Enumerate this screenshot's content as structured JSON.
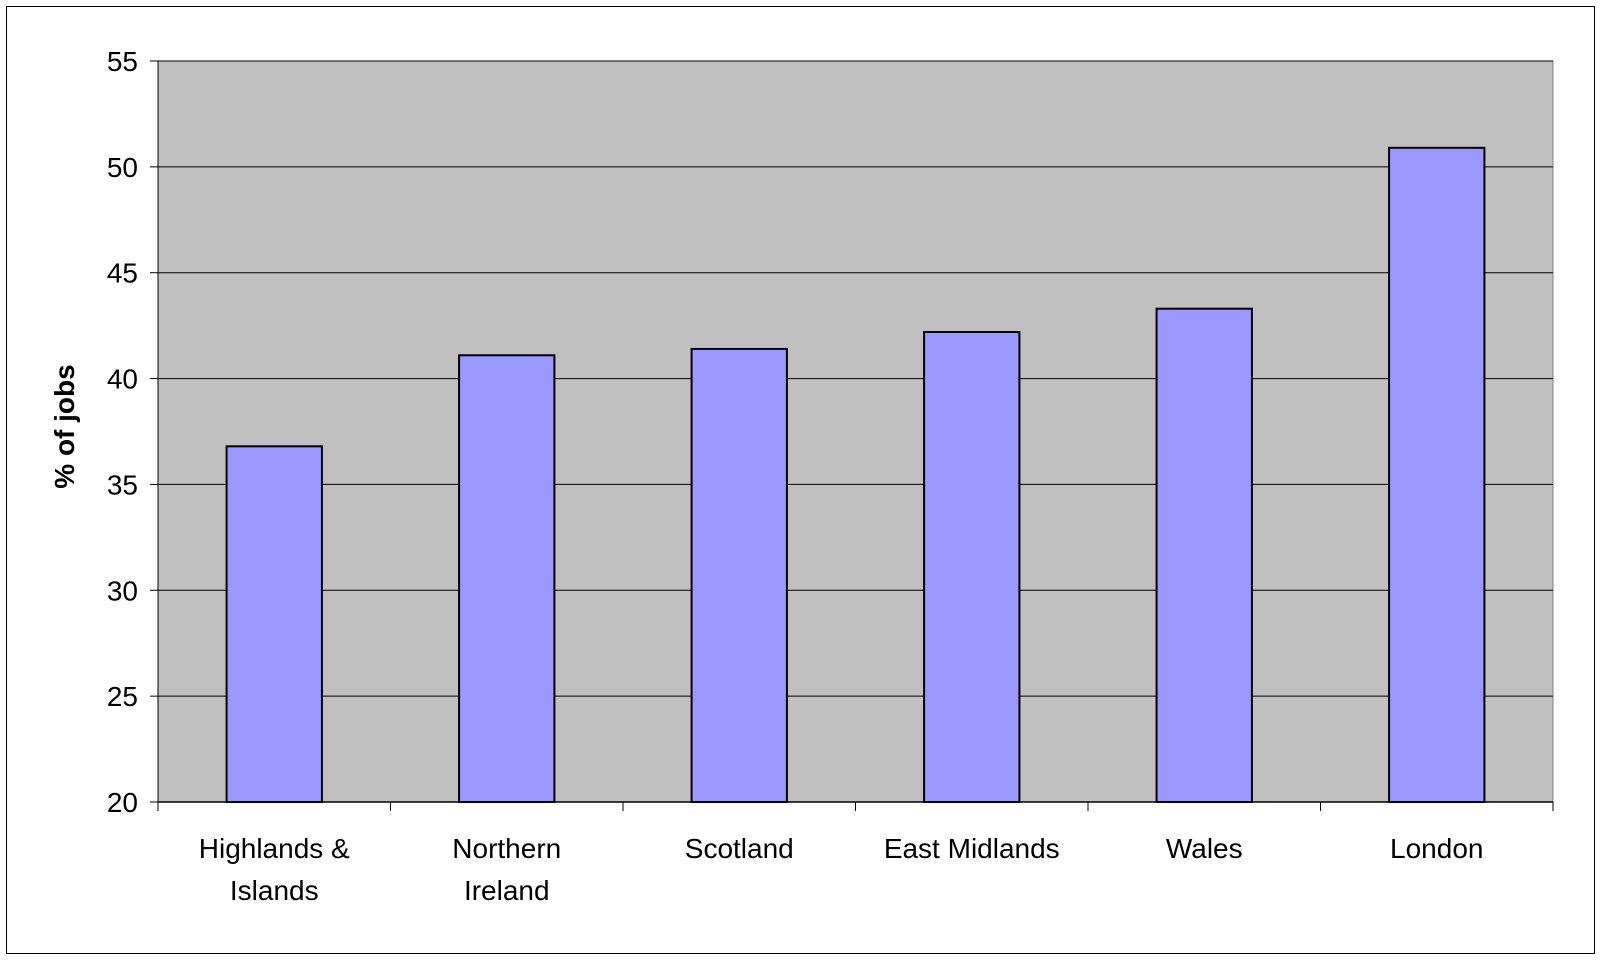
{
  "chart_data": {
    "type": "bar",
    "title": "",
    "xlabel": "",
    "ylabel": "% of jobs",
    "categories": [
      [
        "Highlands &",
        "Islands"
      ],
      [
        "Northern",
        "Ireland"
      ],
      [
        "Scotland"
      ],
      [
        "East Midlands"
      ],
      [
        "Wales"
      ],
      [
        "London"
      ]
    ],
    "values": [
      36.8,
      41.1,
      41.4,
      42.2,
      43.3,
      50.9
    ],
    "ylim": [
      20,
      55
    ],
    "yticks": [
      "20",
      "25",
      "30",
      "35",
      "40",
      "45",
      "50",
      "55"
    ],
    "grid": true,
    "legend": "none",
    "colors": {
      "plot_background": "#c0c0c0",
      "bar_fill": "#9999ff",
      "bar_stroke": "#000000",
      "grid": "#000000"
    }
  }
}
